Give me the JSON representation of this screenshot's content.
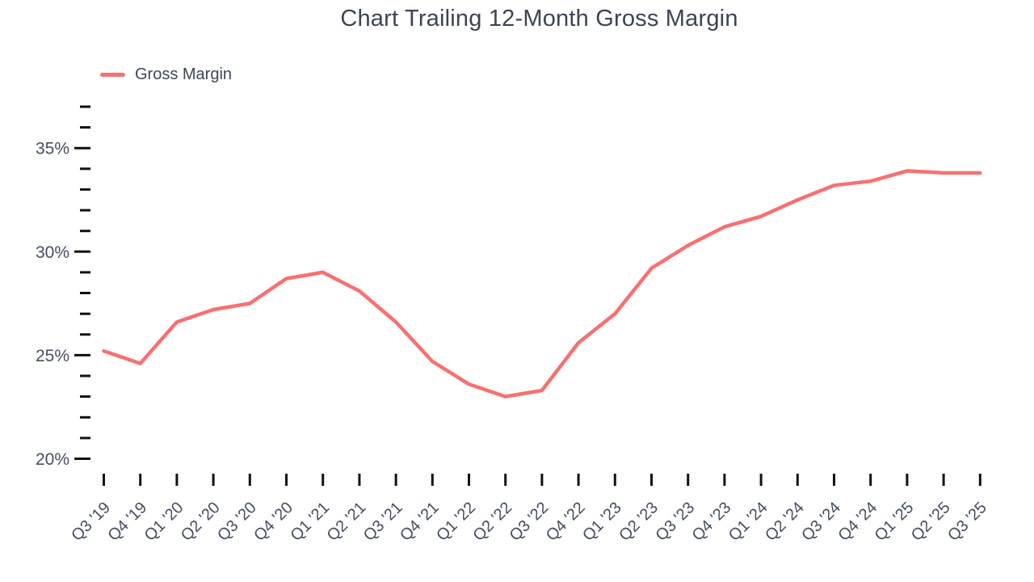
{
  "header": {
    "title": "Chart Trailing 12-Month Gross Margin"
  },
  "legend": {
    "items": [
      {
        "label": "Gross Margin",
        "swatch_color": "#F87070"
      }
    ]
  },
  "chart_data": {
    "type": "line",
    "title": "Chart Trailing 12-Month Gross Margin",
    "xlabel": "",
    "ylabel": "",
    "ylim": [
      20,
      37
    ],
    "y_major_ticks": [
      20,
      25,
      30,
      35
    ],
    "y_minor_tick_step": 1,
    "y_tick_suffix": "%",
    "grid": false,
    "legend_position": "top-left",
    "categories": [
      "Q3 '19",
      "Q4 '19",
      "Q1 '20",
      "Q2 '20",
      "Q3 '20",
      "Q4 '20",
      "Q1 '21",
      "Q2 '21",
      "Q3 '21",
      "Q4 '21",
      "Q1 '22",
      "Q2 '22",
      "Q3 '22",
      "Q4 '22",
      "Q1 '23",
      "Q2 '23",
      "Q3 '23",
      "Q4 '23",
      "Q1 '24",
      "Q2 '24",
      "Q3 '24",
      "Q4 '24",
      "Q1 '25",
      "Q2 '25",
      "Q3 '25"
    ],
    "series": [
      {
        "name": "Gross Margin",
        "color": "#F87070",
        "values": [
          25.2,
          24.6,
          26.6,
          27.2,
          27.5,
          28.7,
          29.0,
          28.1,
          26.6,
          24.7,
          23.6,
          23.0,
          23.3,
          25.6,
          27.0,
          29.2,
          30.3,
          31.2,
          31.7,
          32.5,
          33.2,
          33.4,
          33.9,
          33.8,
          33.8
        ]
      }
    ],
    "colors": {
      "line": "#F87070",
      "axis_text": "#454E5F",
      "title_text": "#3C4552",
      "tick": "#111111",
      "background": "#FFFFFF"
    }
  }
}
